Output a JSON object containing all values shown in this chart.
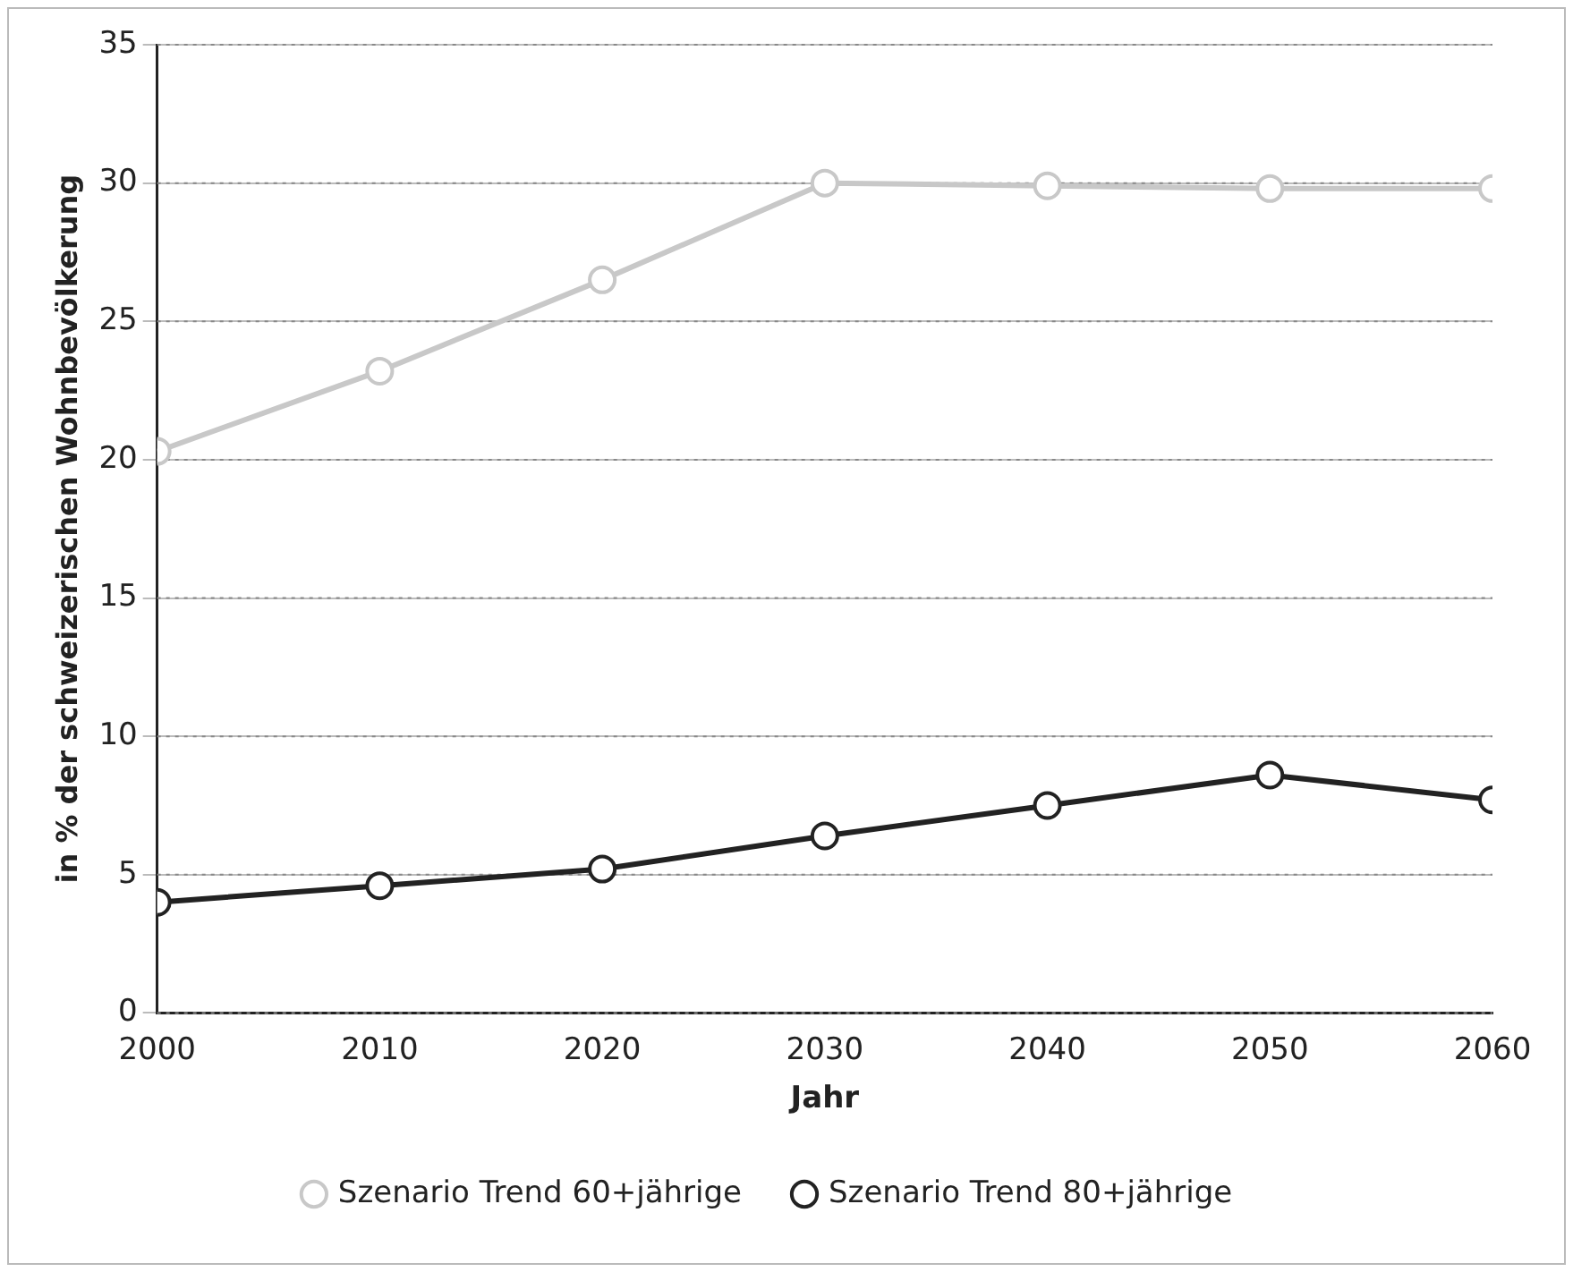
{
  "chart_data": {
    "type": "line",
    "xlabel": "Jahr",
    "ylabel": "in % der schweizerischen Wohnbevölkerung",
    "x": [
      2000,
      2010,
      2020,
      2030,
      2040,
      2050,
      2060
    ],
    "series": [
      {
        "name": "Szenario Trend 60+jährige",
        "color": "#c8c8c8",
        "values": [
          20.3,
          23.2,
          26.5,
          30.0,
          29.9,
          29.8,
          29.8
        ]
      },
      {
        "name": "Szenario Trend 80+jährige",
        "color": "#222222",
        "values": [
          4.0,
          4.6,
          5.2,
          6.4,
          7.5,
          8.6,
          7.7
        ]
      }
    ],
    "xlim": [
      2000,
      2060
    ],
    "xticks": [
      2000,
      2010,
      2020,
      2030,
      2040,
      2050,
      2060
    ],
    "ylim": [
      0,
      35
    ],
    "yticks": [
      0,
      5,
      10,
      15,
      20,
      25,
      30,
      35
    ],
    "grid": "y",
    "legend": "bottom",
    "marker": "circle",
    "line_style": "solid"
  }
}
